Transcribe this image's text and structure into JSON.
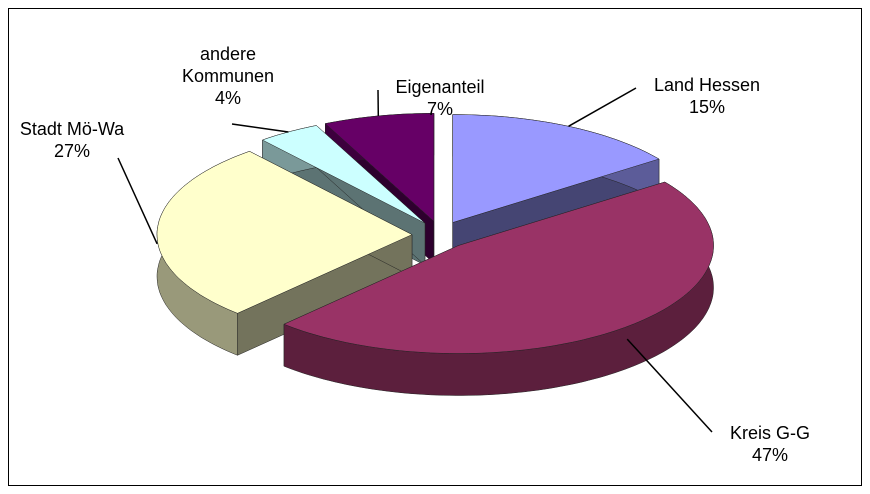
{
  "chart_data": {
    "type": "pie",
    "categories": [
      "Land Hessen",
      "Kreis G-G",
      "Stadt Mö-Wa",
      "andere Kommunen",
      "Eigenanteil"
    ],
    "values": [
      15,
      47,
      27,
      4,
      7
    ],
    "value_labels": [
      "15%",
      "47%",
      "27%",
      "4%",
      "7%"
    ],
    "colors": [
      "#9999ff",
      "#993366",
      "#ffffcc",
      "#ccffff",
      "#660066"
    ],
    "three_d": true,
    "exploded": true
  }
}
